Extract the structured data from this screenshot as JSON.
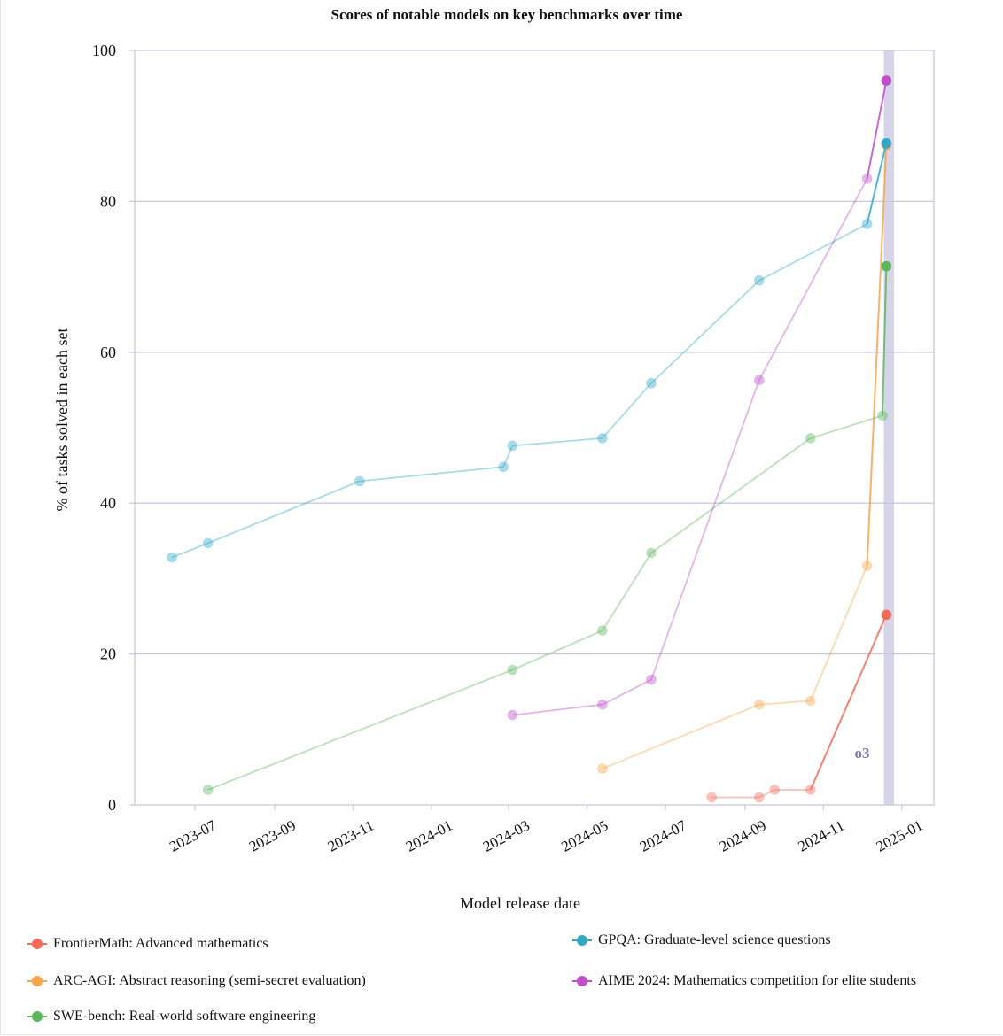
{
  "chart_data": {
    "type": "line",
    "title": "Scores of notable models on key benchmarks over time",
    "xlabel": "Model release date",
    "ylabel": "% of tasks solved in each set",
    "ylim": [
      0,
      100
    ],
    "xlim": [
      "2023-05-15",
      "2025-01-26"
    ],
    "yticks": [
      0,
      20,
      40,
      60,
      80,
      100
    ],
    "xticks": [
      "2023-07-01",
      "2023-09-01",
      "2023-11-01",
      "2024-01-01",
      "2024-03-01",
      "2024-05-01",
      "2024-07-01",
      "2024-09-01",
      "2024-11-01",
      "2025-01-01"
    ],
    "xtick_labels": [
      "2023-07",
      "2023-09",
      "2023-11",
      "2024-01",
      "2024-03",
      "2024-05",
      "2024-07",
      "2024-09",
      "2024-11",
      "2025-01"
    ],
    "grid": "horizontal",
    "legend_position": "bottom",
    "highlight": {
      "label": "o3",
      "from": "2024-12-18",
      "to": "2024-12-26"
    },
    "series": [
      {
        "name": "FrontierMath: Advanced mathematics",
        "color": "#f26b5b",
        "points": [
          [
            "2024-08-06",
            1.0
          ],
          [
            "2024-09-12",
            1.0
          ],
          [
            "2024-09-24",
            2.0
          ],
          [
            "2024-10-22",
            2.0
          ],
          [
            "2024-12-20",
            25.2
          ]
        ]
      },
      {
        "name": "ARC-AGI: Abstract reasoning (semi-secret evaluation)",
        "color": "#f5a54a",
        "points": [
          [
            "2024-05-13",
            4.8
          ],
          [
            "2024-09-12",
            13.3
          ],
          [
            "2024-10-22",
            13.8
          ],
          [
            "2024-12-05",
            31.7
          ],
          [
            "2024-12-20",
            87.5
          ]
        ]
      },
      {
        "name": "SWE-bench: Real-world software engineering",
        "color": "#5cb65e",
        "points": [
          [
            "2023-07-11",
            2.0
          ],
          [
            "2024-03-04",
            17.9
          ],
          [
            "2024-05-13",
            23.1
          ],
          [
            "2024-06-20",
            33.4
          ],
          [
            "2024-10-22",
            48.6
          ],
          [
            "2024-12-17",
            51.6
          ],
          [
            "2024-12-20",
            71.4
          ]
        ]
      },
      {
        "name": "GPQA: Graduate-level science questions",
        "color": "#33a8c5",
        "points": [
          [
            "2023-06-13",
            32.8
          ],
          [
            "2023-07-11",
            34.7
          ],
          [
            "2023-11-06",
            42.9
          ],
          [
            "2024-02-26",
            44.8
          ],
          [
            "2024-03-04",
            47.6
          ],
          [
            "2024-05-13",
            48.6
          ],
          [
            "2024-06-20",
            55.9
          ],
          [
            "2024-09-12",
            69.5
          ],
          [
            "2024-12-05",
            77.0
          ],
          [
            "2024-12-20",
            87.7
          ]
        ]
      },
      {
        "name": "AIME 2024: Mathematics competition for elite students",
        "color": "#bf4fc8",
        "points": [
          [
            "2024-03-04",
            11.9
          ],
          [
            "2024-05-13",
            13.3
          ],
          [
            "2024-06-20",
            16.6
          ],
          [
            "2024-09-12",
            56.3
          ],
          [
            "2024-12-05",
            83.0
          ],
          [
            "2024-12-20",
            96.0
          ]
        ]
      }
    ]
  }
}
